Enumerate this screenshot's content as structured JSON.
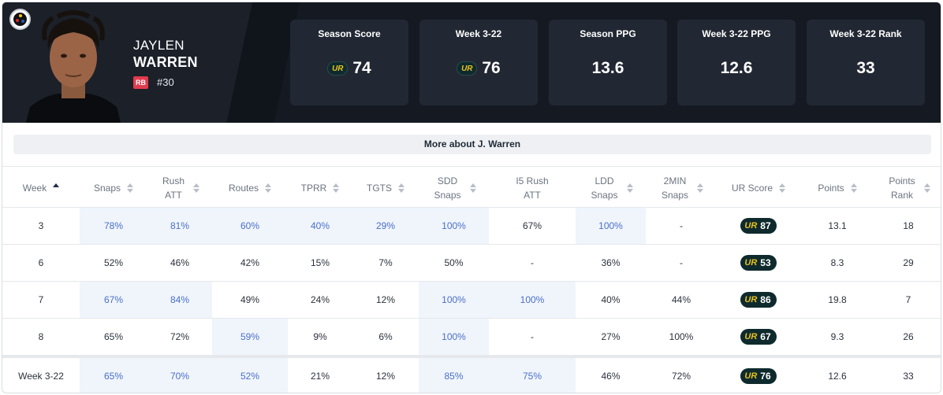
{
  "player": {
    "first_name": "JAYLEN",
    "last_name": "WARREN",
    "position": "RB",
    "jersey": "#30",
    "team_logo": "steelers-logo"
  },
  "stat_tiles": [
    {
      "label": "Season Score",
      "value": "74",
      "has_ur_badge": true
    },
    {
      "label": "Week 3-22",
      "value": "76",
      "has_ur_badge": true
    },
    {
      "label": "Season PPG",
      "value": "13.6",
      "has_ur_badge": false
    },
    {
      "label": "Week 3-22 PPG",
      "value": "12.6",
      "has_ur_badge": false
    },
    {
      "label": "Week 3-22 Rank",
      "value": "33",
      "has_ur_badge": false
    }
  ],
  "ur_logo_text": "UR",
  "more_button": "More about J. Warren",
  "table": {
    "columns": [
      "Week",
      "Snaps",
      "Rush ATT",
      "Routes",
      "TPRR",
      "TGTS",
      "SDD Snaps",
      "I5 Rush ATT",
      "LDD Snaps",
      "2MIN Snaps",
      "UR Score",
      "Points",
      "Points Rank"
    ],
    "rows": [
      {
        "week": "3",
        "snaps": "78%",
        "rush_att": "81%",
        "routes": "60%",
        "tprr": "40%",
        "tgts": "29%",
        "sdd": "100%",
        "i5": "67%",
        "ldd": "100%",
        "two_min": "-",
        "ur": "87",
        "points": "13.1",
        "rank": "18"
      },
      {
        "week": "6",
        "snaps": "52%",
        "rush_att": "46%",
        "routes": "42%",
        "tprr": "15%",
        "tgts": "7%",
        "sdd": "50%",
        "i5": "-",
        "ldd": "36%",
        "two_min": "-",
        "ur": "53",
        "points": "8.3",
        "rank": "29"
      },
      {
        "week": "7",
        "snaps": "67%",
        "rush_att": "84%",
        "routes": "49%",
        "tprr": "24%",
        "tgts": "12%",
        "sdd": "100%",
        "i5": "100%",
        "ldd": "40%",
        "two_min": "44%",
        "ur": "86",
        "points": "19.8",
        "rank": "7"
      },
      {
        "week": "8",
        "snaps": "65%",
        "rush_att": "72%",
        "routes": "59%",
        "tprr": "9%",
        "tgts": "6%",
        "sdd": "100%",
        "i5": "-",
        "ldd": "27%",
        "two_min": "100%",
        "ur": "67",
        "points": "9.3",
        "rank": "26"
      }
    ],
    "total": {
      "week": "Week 3-22",
      "snaps": "65%",
      "rush_att": "70%",
      "routes": "52%",
      "tprr": "21%",
      "tgts": "12%",
      "sdd": "85%",
      "i5": "75%",
      "ldd": "46%",
      "two_min": "72%",
      "ur": "76",
      "points": "12.6",
      "rank": "33"
    }
  },
  "colors": {
    "header_bg": "#151a22",
    "tile_bg": "#222833",
    "highlight_bg": "#f0f5fc",
    "highlight_text": "#4a6fc9",
    "ur_badge_bg": "#0e2a2d",
    "ur_accent": "#e8c21e",
    "position_badge": "#e23b4e"
  }
}
